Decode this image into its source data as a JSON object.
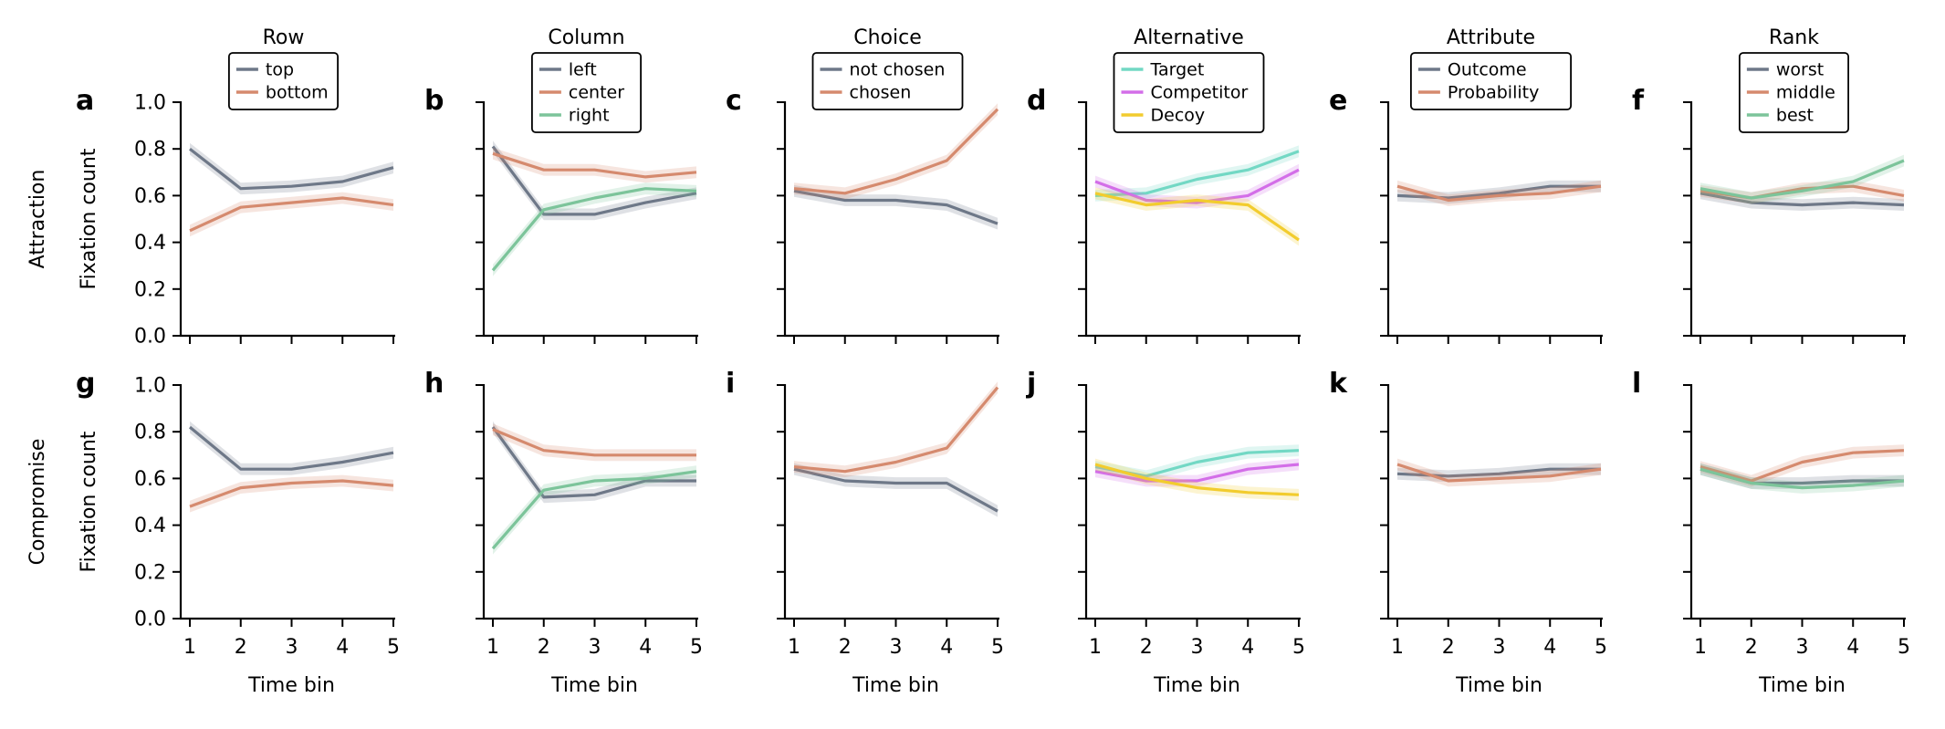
{
  "chart_data": {
    "type": "line",
    "xlabel": "Time bin",
    "x": [
      1,
      2,
      3,
      4,
      5
    ],
    "ylim": [
      0.0,
      1.0
    ],
    "yticks": [
      "0.0",
      "0.2",
      "0.4",
      "0.6",
      "0.8",
      "1.0"
    ],
    "grid": false,
    "rows": [
      {
        "name": "Attraction",
        "ylabel": "Fixation count"
      },
      {
        "name": "Compromise",
        "ylabel": "Fixation count"
      }
    ],
    "columns": [
      {
        "title": "Row",
        "letters": [
          "a",
          "g"
        ],
        "legend_placement": "top-center",
        "series": [
          {
            "name": "top",
            "color": "#6e7888",
            "values": [
              [
                0.8,
                0.63,
                0.64,
                0.66,
                0.72
              ],
              [
                0.82,
                0.64,
                0.64,
                0.67,
                0.71
              ]
            ]
          },
          {
            "name": "bottom",
            "color": "#d58a6e",
            "values": [
              [
                0.45,
                0.55,
                0.57,
                0.59,
                0.56
              ],
              [
                0.48,
                0.56,
                0.58,
                0.59,
                0.57
              ]
            ]
          }
        ]
      },
      {
        "title": "Column",
        "letters": [
          "b",
          "h"
        ],
        "legend_placement": "top-center",
        "series": [
          {
            "name": "left",
            "color": "#6e7888",
            "values": [
              [
                0.81,
                0.52,
                0.52,
                0.57,
                0.61
              ],
              [
                0.82,
                0.52,
                0.53,
                0.59,
                0.59
              ]
            ]
          },
          {
            "name": "center",
            "color": "#d58a6e",
            "values": [
              [
                0.78,
                0.71,
                0.71,
                0.68,
                0.7
              ],
              [
                0.81,
                0.72,
                0.7,
                0.7,
                0.7
              ]
            ]
          },
          {
            "name": "right",
            "color": "#7cc49a",
            "values": [
              [
                0.28,
                0.54,
                0.59,
                0.63,
                0.62
              ],
              [
                0.3,
                0.55,
                0.59,
                0.6,
                0.63
              ]
            ]
          }
        ]
      },
      {
        "title": "Choice",
        "letters": [
          "c",
          "i"
        ],
        "legend_placement": "top-center",
        "series": [
          {
            "name": "not chosen",
            "color": "#6e7888",
            "values": [
              [
                0.62,
                0.58,
                0.58,
                0.56,
                0.48
              ],
              [
                0.64,
                0.59,
                0.58,
                0.58,
                0.46
              ]
            ]
          },
          {
            "name": "chosen",
            "color": "#d58a6e",
            "values": [
              [
                0.63,
                0.61,
                0.67,
                0.75,
                0.97
              ],
              [
                0.65,
                0.63,
                0.67,
                0.73,
                0.99
              ]
            ]
          }
        ]
      },
      {
        "title": "Alternative",
        "letters": [
          "d",
          "j"
        ],
        "legend_placement": "top-center",
        "series": [
          {
            "name": "Target",
            "color": "#72d8c4",
            "values": [
              [
                0.6,
                0.61,
                0.67,
                0.71,
                0.79
              ],
              [
                0.65,
                0.61,
                0.67,
                0.71,
                0.72
              ]
            ]
          },
          {
            "name": "Competitor",
            "color": "#d36ee8",
            "values": [
              [
                0.66,
                0.58,
                0.57,
                0.6,
                0.71
              ],
              [
                0.63,
                0.59,
                0.59,
                0.64,
                0.66
              ]
            ]
          },
          {
            "name": "Decoy",
            "color": "#f2cc2e",
            "values": [
              [
                0.61,
                0.56,
                0.58,
                0.56,
                0.41
              ],
              [
                0.66,
                0.6,
                0.56,
                0.54,
                0.53
              ]
            ]
          }
        ]
      },
      {
        "title": "Attribute",
        "letters": [
          "e",
          "k"
        ],
        "legend_placement": "top-center",
        "series": [
          {
            "name": "Outcome",
            "color": "#6e7888",
            "values": [
              [
                0.6,
                0.59,
                0.61,
                0.64,
                0.64
              ],
              [
                0.62,
                0.61,
                0.62,
                0.64,
                0.64
              ]
            ]
          },
          {
            "name": "Probability",
            "color": "#d58a6e",
            "values": [
              [
                0.64,
                0.58,
                0.6,
                0.61,
                0.64
              ],
              [
                0.66,
                0.59,
                0.6,
                0.61,
                0.64
              ]
            ]
          }
        ]
      },
      {
        "title": "Rank",
        "letters": [
          "f",
          "l"
        ],
        "legend_placement": "top-center",
        "series": [
          {
            "name": "worst",
            "color": "#6e7888",
            "values": [
              [
                0.61,
                0.57,
                0.56,
                0.57,
                0.56
              ],
              [
                0.64,
                0.58,
                0.58,
                0.59,
                0.59
              ]
            ]
          },
          {
            "name": "middle",
            "color": "#d58a6e",
            "values": [
              [
                0.62,
                0.59,
                0.63,
                0.64,
                0.6
              ],
              [
                0.65,
                0.59,
                0.67,
                0.71,
                0.72
              ]
            ]
          },
          {
            "name": "best",
            "color": "#7cc49a",
            "values": [
              [
                0.63,
                0.59,
                0.62,
                0.66,
                0.75
              ],
              [
                0.64,
                0.58,
                0.56,
                0.57,
                0.59
              ]
            ]
          }
        ]
      }
    ]
  }
}
